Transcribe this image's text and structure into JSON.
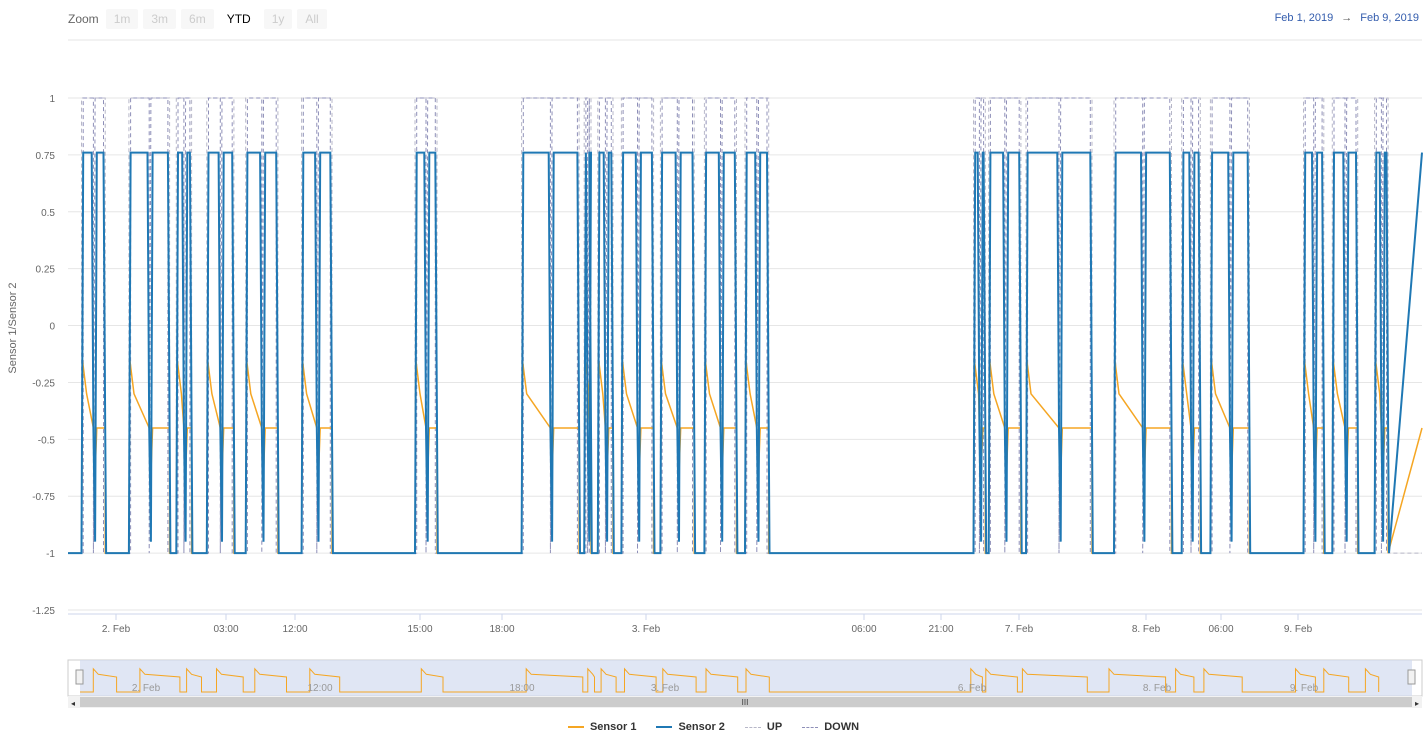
{
  "toolbar": {
    "zoom_label": "Zoom",
    "buttons": [
      "1m",
      "3m",
      "6m",
      "YTD",
      "1y",
      "All"
    ],
    "active": "YTD"
  },
  "range": {
    "from": "Feb 1, 2019",
    "arrow": "→",
    "to": "Feb 9, 2019"
  },
  "colors": {
    "sensor1": "#f5a623",
    "sensor2": "#1f78b4",
    "up": "#b7b7c8",
    "down": "#8e8fb8",
    "navigator_mask": "#d3dbef",
    "grid": "#e6e6e6"
  },
  "navigator": {
    "labels": [
      "2. Feb",
      "12:00",
      "18:00",
      "3. Feb",
      "6. Feb",
      "8. Feb",
      "9. Feb"
    ],
    "scrollbar_grip": "III"
  },
  "chart_data": {
    "type": "line",
    "ylabel": "Sensor 1/Sensor 2",
    "ylim": [
      -1.25,
      1
    ],
    "yticks": [
      1,
      0.75,
      0.5,
      0.25,
      0,
      -0.25,
      -0.5,
      -0.75,
      -1,
      -1.25
    ],
    "ytick_labels": [
      "1",
      "0.75",
      "0.5",
      "0.25",
      "0",
      "-0.25",
      "-0.5",
      "-0.75",
      "-1",
      "-1.25"
    ],
    "xtick_labels": [
      "2. Feb",
      "03:00",
      "12:00",
      "15:00",
      "18:00",
      "3. Feb",
      "06:00",
      "21:00",
      "7. Feb",
      "8. Feb",
      "06:00",
      "9. Feb"
    ],
    "grid": true,
    "legend_position": "bottom-center",
    "series": [
      {
        "name": "Sensor 1",
        "style": "solid",
        "base": -1,
        "high": -0.45,
        "spike": -0.15
      },
      {
        "name": "Sensor 2",
        "style": "solid",
        "base": -1,
        "high": 0.76,
        "low": -0.45
      },
      {
        "name": "UP",
        "style": "dashed",
        "base": -1,
        "high": 1
      },
      {
        "name": "DOWN",
        "style": "dashed",
        "base": -1,
        "high": 1
      }
    ],
    "active_intervals": [
      [
        0.08,
        0.22
      ],
      [
        0.36,
        0.6
      ],
      [
        0.64,
        0.73
      ],
      [
        0.82,
        0.98
      ],
      [
        1.05,
        1.24
      ],
      [
        1.38,
        1.56
      ],
      [
        2.05,
        2.18
      ],
      [
        2.68,
        3.02
      ],
      [
        3.05,
        3.09
      ],
      [
        3.13,
        3.22
      ],
      [
        3.27,
        3.46
      ],
      [
        3.5,
        3.7
      ],
      [
        3.76,
        3.95
      ],
      [
        4.0,
        4.14
      ],
      [
        5.35,
        5.42
      ],
      [
        5.44,
        5.63
      ],
      [
        5.66,
        6.05
      ],
      [
        6.18,
        6.52
      ],
      [
        6.58,
        6.69
      ],
      [
        6.75,
        6.98
      ],
      [
        7.3,
        7.42
      ],
      [
        7.47,
        7.62
      ],
      [
        7.72,
        7.8
      ]
    ],
    "x_span": [
      0,
      8
    ]
  }
}
